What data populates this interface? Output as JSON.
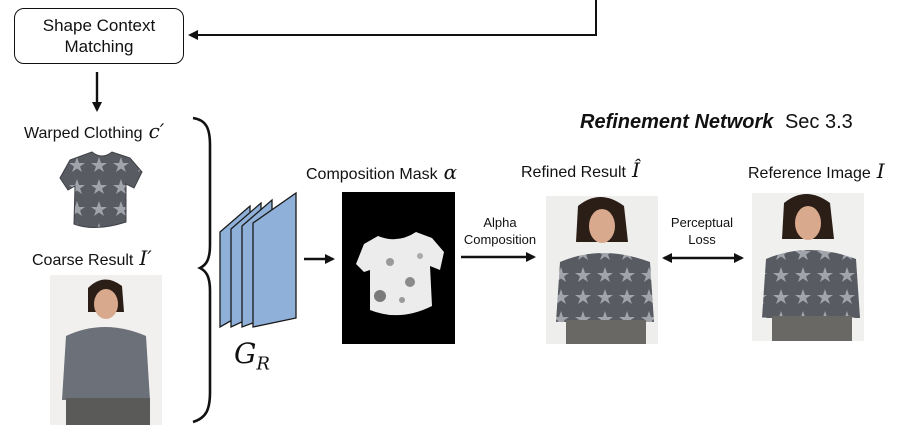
{
  "stage": {
    "box_label_line1": "Shape Context",
    "box_label_line2": "Matching",
    "title_bold": "Refinement Network",
    "title_section": "Sec 3.3"
  },
  "inputs": {
    "warped_label": "Warped Clothing",
    "warped_symbol": "c′",
    "coarse_label": "Coarse Result",
    "coarse_symbol": "I′"
  },
  "network": {
    "symbol_main": "G",
    "symbol_sub": "R"
  },
  "outputs": {
    "mask_label": "Composition Mask",
    "mask_symbol": "α",
    "refined_label": "Refined Result",
    "refined_symbol": "Î",
    "reference_label": "Reference Image",
    "reference_symbol": "I"
  },
  "arrows": {
    "alpha_line1": "Alpha",
    "alpha_line2": "Composition",
    "perceptual_line1": "Perceptual",
    "perceptual_line2": "Loss"
  },
  "colors": {
    "network_fill": "#8fb0d8",
    "network_stroke": "#1a1a1a",
    "mask_background": "#000000",
    "shirt_gray": "#55585e"
  }
}
